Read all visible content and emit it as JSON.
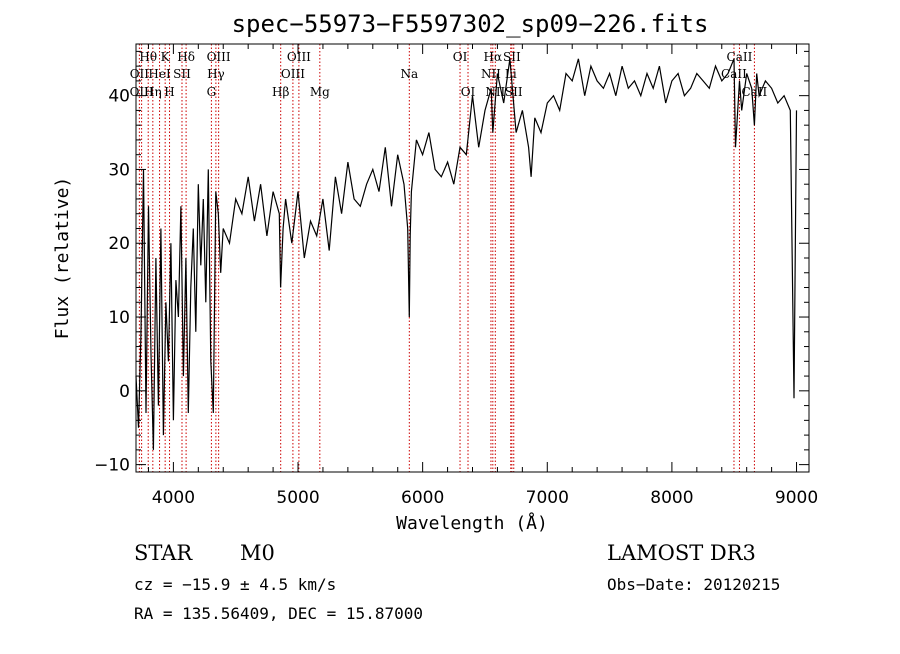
{
  "chart_data": {
    "type": "line",
    "title": "spec−55973−F5597302_sp09−226.fits",
    "xlabel": "Wavelength (Å)",
    "ylabel": "Flux (relative)",
    "xlim": [
      3700,
      9100
    ],
    "ylim": [
      -11,
      47
    ],
    "x_ticks": [
      4000,
      5000,
      6000,
      7000,
      8000,
      9000
    ],
    "y_ticks": [
      -10,
      0,
      10,
      20,
      30,
      40
    ],
    "x_tick_labels": [
      "4000",
      "5000",
      "6000",
      "7000",
      "8000",
      "9000"
    ],
    "y_tick_labels": [
      "−10",
      "0",
      "10",
      "20",
      "30",
      "40"
    ],
    "grid": false,
    "line_color": "#000000",
    "marker_color": "#cc0000",
    "series": [
      {
        "x": [
          3700,
          3720,
          3740,
          3760,
          3780,
          3800,
          3820,
          3840,
          3860,
          3880,
          3900,
          3920,
          3940,
          3960,
          3980,
          4000,
          4020,
          4040,
          4060,
          4080,
          4100,
          4120,
          4140,
          4160,
          4180,
          4200,
          4220,
          4240,
          4260,
          4280,
          4300,
          4320,
          4340,
          4360,
          4380,
          4400,
          4450,
          4500,
          4550,
          4600,
          4650,
          4700,
          4750,
          4800,
          4850,
          4860,
          4880,
          4900,
          4950,
          5000,
          5050,
          5100,
          5150,
          5200,
          5250,
          5300,
          5350,
          5400,
          5450,
          5500,
          5550,
          5600,
          5650,
          5700,
          5750,
          5800,
          5850,
          5880,
          5893,
          5900,
          5910,
          5950,
          6000,
          6050,
          6100,
          6150,
          6200,
          6250,
          6300,
          6350,
          6400,
          6450,
          6500,
          6550,
          6563,
          6600,
          6650,
          6700,
          6750,
          6800,
          6850,
          6870,
          6900,
          6950,
          7000,
          7050,
          7100,
          7150,
          7200,
          7250,
          7300,
          7350,
          7400,
          7450,
          7500,
          7550,
          7600,
          7650,
          7700,
          7750,
          7800,
          7850,
          7900,
          7950,
          8000,
          8050,
          8100,
          8150,
          8200,
          8250,
          8300,
          8350,
          8400,
          8450,
          8498,
          8510,
          8542,
          8560,
          8600,
          8640,
          8662,
          8680,
          8700,
          8750,
          8800,
          8850,
          8900,
          8950,
          8980,
          9000
        ],
        "y": [
          2,
          -5,
          8,
          30,
          -3,
          25,
          5,
          -8,
          18,
          -2,
          22,
          -6,
          12,
          4,
          20,
          -4,
          15,
          10,
          25,
          2,
          18,
          -3,
          14,
          22,
          8,
          28,
          17,
          26,
          12,
          30,
          4,
          -3,
          27,
          24,
          16,
          22,
          20,
          26,
          24,
          29,
          23,
          28,
          21,
          27,
          24,
          14,
          22,
          26,
          20,
          27,
          18,
          23,
          21,
          26,
          19,
          29,
          24,
          31,
          26,
          25,
          28,
          30,
          27,
          33,
          25,
          32,
          28,
          22,
          10,
          21,
          27,
          34,
          32,
          35,
          30,
          29,
          31,
          28,
          33,
          32,
          40,
          33,
          38,
          41,
          35,
          43,
          39,
          45,
          35,
          38,
          33,
          29,
          37,
          35,
          39,
          40,
          38,
          43,
          42,
          45,
          40,
          44,
          42,
          41,
          43,
          40,
          44,
          41,
          42,
          40,
          43,
          41,
          44,
          39,
          42,
          43,
          40,
          41,
          43,
          42,
          41,
          44,
          42,
          43,
          45,
          33,
          42,
          38,
          43,
          41,
          36,
          43,
          40,
          42,
          41,
          39,
          40,
          38,
          -1,
          38
        ]
      }
    ],
    "lines": [
      {
        "name": "Hθ",
        "wl": 3798,
        "row": 1
      },
      {
        "name": "OII",
        "wl": 3727,
        "row": 2
      },
      {
        "name": "OIII",
        "wl": 3745,
        "row": 3
      },
      {
        "name": "K",
        "wl": 3934,
        "row": 1
      },
      {
        "name": "HeI",
        "wl": 3889,
        "row": 2
      },
      {
        "name": "Hη",
        "wl": 3835,
        "row": 3
      },
      {
        "name": "Hδ",
        "wl": 4102,
        "row": 1
      },
      {
        "name": "SII",
        "wl": 4069,
        "row": 2
      },
      {
        "name": "H",
        "wl": 3969,
        "row": 3
      },
      {
        "name": "OIII",
        "wl": 4363,
        "row": 1
      },
      {
        "name": "Hγ",
        "wl": 4341,
        "row": 2
      },
      {
        "name": "G",
        "wl": 4305,
        "row": 3
      },
      {
        "name": "OIII",
        "wl": 5007,
        "row": 1
      },
      {
        "name": "OIII",
        "wl": 4959,
        "row": 2
      },
      {
        "name": "Hβ",
        "wl": 4861,
        "row": 3
      },
      {
        "name": "Mg",
        "wl": 5175,
        "row": 3
      },
      {
        "name": "Na",
        "wl": 5893,
        "row": 2
      },
      {
        "name": "OI",
        "wl": 6300,
        "row": 1
      },
      {
        "name": "OI",
        "wl": 6364,
        "row": 3
      },
      {
        "name": "Hα",
        "wl": 6563,
        "row": 1
      },
      {
        "name": "NII",
        "wl": 6548,
        "row": 2
      },
      {
        "name": "NII",
        "wl": 6583,
        "row": 3
      },
      {
        "name": "SII",
        "wl": 6716,
        "row": 1
      },
      {
        "name": "Li",
        "wl": 6707,
        "row": 2
      },
      {
        "name": "SII",
        "wl": 6731,
        "row": 3
      },
      {
        "name": "CaII",
        "wl": 8542,
        "row": 1
      },
      {
        "name": "CaII",
        "wl": 8498,
        "row": 2
      },
      {
        "name": "CaII",
        "wl": 8662,
        "row": 3
      }
    ]
  },
  "info": {
    "class_label": "STAR",
    "subclass_label": "M0",
    "survey": "LAMOST DR3",
    "redshift_text": "cz = −15.9 ± 4.5 km/s",
    "obs_date_text": "Obs−Date: 20120215",
    "coords_text": "RA = 135.56409, DEC =  15.87000"
  }
}
